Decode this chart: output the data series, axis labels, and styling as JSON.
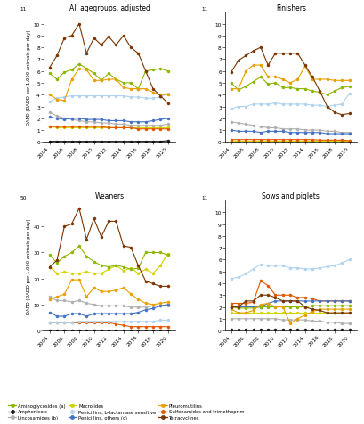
{
  "years": [
    2004,
    2005,
    2006,
    2007,
    2008,
    2009,
    2010,
    2011,
    2012,
    2013,
    2014,
    2015,
    2016,
    2017,
    2018,
    2019,
    2020
  ],
  "subplots": {
    "All agegroups, adjusted": {
      "ylim": [
        0,
        11
      ],
      "yticks": [
        0,
        1,
        2,
        3,
        4,
        5,
        6,
        7,
        8,
        9,
        10,
        11
      ],
      "series": {
        "Aminoglycosides (a)": [
          5.8,
          5.3,
          5.9,
          6.1,
          6.6,
          6.2,
          5.8,
          5.2,
          5.8,
          5.3,
          5.0,
          5.0,
          4.5,
          6.0,
          6.1,
          6.2,
          6.0
        ],
        "Amphenicols": [
          0.05,
          0.05,
          0.05,
          0.05,
          0.05,
          0.05,
          0.05,
          0.05,
          0.05,
          0.05,
          0.05,
          0.05,
          0.05,
          0.05,
          0.05,
          0.05,
          0.1
        ],
        "Lincosamides (b)": [
          2.5,
          2.2,
          2.0,
          1.9,
          1.8,
          1.7,
          1.7,
          1.6,
          1.6,
          1.5,
          1.5,
          1.4,
          1.4,
          1.4,
          1.4,
          1.4,
          1.5
        ],
        "Macrolides": [
          1.3,
          1.2,
          1.2,
          1.2,
          1.2,
          1.2,
          1.2,
          1.2,
          1.2,
          1.2,
          1.2,
          1.2,
          1.2,
          1.2,
          1.2,
          1.2,
          1.2
        ],
        "Penicillins, b-lactamase sensitive": [
          3.4,
          3.7,
          3.8,
          3.9,
          3.9,
          3.9,
          3.9,
          3.9,
          3.9,
          3.9,
          3.9,
          3.8,
          3.8,
          3.7,
          3.7,
          3.8,
          4.1
        ],
        "Penicillins, others (c)": [
          2.1,
          2.0,
          1.9,
          2.0,
          2.0,
          1.9,
          1.9,
          1.9,
          1.8,
          1.8,
          1.8,
          1.7,
          1.7,
          1.7,
          1.8,
          1.9,
          2.0
        ],
        "Pleuromutilins": [
          4.0,
          3.6,
          3.5,
          5.3,
          6.2,
          6.1,
          5.2,
          5.2,
          5.3,
          5.3,
          4.6,
          4.5,
          4.5,
          4.5,
          4.2,
          4.0,
          4.0
        ],
        "Sulfonamides and trimethoprim": [
          1.3,
          1.3,
          1.3,
          1.3,
          1.3,
          1.3,
          1.3,
          1.3,
          1.2,
          1.2,
          1.2,
          1.2,
          1.1,
          1.1,
          1.1,
          1.1,
          1.1
        ],
        "Tetracyclines": [
          6.3,
          7.3,
          8.8,
          9.0,
          10.0,
          7.5,
          8.8,
          8.2,
          8.9,
          8.2,
          9.0,
          8.0,
          7.5,
          6.0,
          4.5,
          3.9,
          3.3
        ]
      }
    },
    "Finishers": {
      "ylim": [
        0,
        11
      ],
      "yticks": [
        0,
        1,
        2,
        3,
        4,
        5,
        6,
        7,
        8,
        9,
        10,
        11
      ],
      "series": {
        "Aminoglycosides (a)": [
          5.0,
          4.4,
          4.7,
          5.1,
          5.5,
          4.9,
          5.0,
          4.6,
          4.6,
          4.5,
          4.5,
          4.3,
          4.2,
          4.0,
          4.3,
          4.6,
          4.7
        ],
        "Amphenicols": [
          0.05,
          0.05,
          0.05,
          0.05,
          0.05,
          0.05,
          0.05,
          0.05,
          0.05,
          0.05,
          0.05,
          0.05,
          0.05,
          0.05,
          0.05,
          0.05,
          0.05
        ],
        "Lincosamides (b)": [
          1.7,
          1.6,
          1.5,
          1.4,
          1.3,
          1.2,
          1.2,
          1.1,
          1.1,
          1.1,
          1.0,
          1.0,
          1.0,
          0.9,
          0.9,
          0.8,
          0.8
        ],
        "Macrolides": [
          0.1,
          0.1,
          0.1,
          0.1,
          0.1,
          0.1,
          0.1,
          0.1,
          0.1,
          0.1,
          0.1,
          0.1,
          0.1,
          0.1,
          0.1,
          0.1,
          0.1
        ],
        "Penicillins, b-lactamase sensitive": [
          2.8,
          3.0,
          3.0,
          3.2,
          3.2,
          3.2,
          3.3,
          3.2,
          3.2,
          3.2,
          3.2,
          3.1,
          3.1,
          3.0,
          3.1,
          3.2,
          4.1
        ],
        "Penicillins, others (c)": [
          1.0,
          0.9,
          0.9,
          0.9,
          0.8,
          0.9,
          0.9,
          0.9,
          0.8,
          0.8,
          0.8,
          0.8,
          0.8,
          0.7,
          0.7,
          0.7,
          0.7
        ],
        "Pleuromutilins": [
          4.5,
          4.5,
          6.0,
          6.5,
          6.5,
          5.5,
          5.5,
          5.3,
          5.0,
          5.3,
          6.4,
          5.3,
          5.3,
          5.3,
          5.2,
          5.2,
          5.2
        ],
        "Sulfonamides and trimethoprim": [
          0.2,
          0.2,
          0.2,
          0.2,
          0.2,
          0.2,
          0.2,
          0.2,
          0.2,
          0.2,
          0.2,
          0.2,
          0.15,
          0.15,
          0.15,
          0.15,
          0.1
        ],
        "Tetracyclines": [
          5.9,
          6.9,
          7.3,
          7.7,
          8.0,
          6.5,
          7.5,
          7.5,
          7.5,
          7.5,
          6.5,
          5.5,
          4.3,
          3.0,
          2.5,
          2.3,
          2.4
        ]
      }
    },
    "Weaners": {
      "ylim": [
        0,
        50
      ],
      "yticks": [
        0,
        10,
        20,
        30,
        40,
        50
      ],
      "series": {
        "Aminoglycosides (a)": [
          29.0,
          26.0,
          28.5,
          30.0,
          32.5,
          28.5,
          26.5,
          25.0,
          24.5,
          25.0,
          24.5,
          23.5,
          24.0,
          30.0,
          30.0,
          30.0,
          29.0
        ],
        "Amphenicols": [
          0.1,
          0.1,
          0.1,
          0.1,
          0.1,
          0.1,
          0.1,
          0.1,
          0.1,
          0.1,
          0.1,
          0.1,
          0.1,
          0.1,
          0.1,
          0.1,
          0.1
        ],
        "Lincosamides (b)": [
          13.0,
          11.5,
          11.5,
          11.0,
          11.5,
          10.5,
          10.0,
          9.5,
          9.5,
          9.5,
          9.5,
          9.0,
          9.0,
          9.0,
          9.5,
          9.5,
          9.5
        ],
        "Macrolides": [
          24.5,
          22.0,
          22.5,
          22.0,
          22.0,
          22.5,
          22.0,
          22.0,
          23.5,
          25.0,
          23.0,
          24.0,
          22.0,
          23.5,
          22.0,
          25.0,
          29.5
        ],
        "Penicillins, b-lactamase sensitive": [
          3.0,
          3.0,
          3.0,
          3.0,
          3.5,
          3.5,
          3.5,
          3.5,
          3.5,
          3.5,
          3.5,
          3.5,
          3.5,
          3.5,
          3.5,
          4.0,
          4.0
        ],
        "Penicillins, others (c)": [
          7.0,
          5.5,
          5.5,
          6.5,
          6.5,
          5.5,
          6.5,
          6.5,
          6.5,
          6.5,
          6.5,
          6.5,
          7.0,
          8.0,
          8.5,
          9.5,
          10.0
        ],
        "Pleuromutilins": [
          12.0,
          13.0,
          14.0,
          19.5,
          19.5,
          13.0,
          16.5,
          15.0,
          15.0,
          15.5,
          16.5,
          14.0,
          12.0,
          10.5,
          10.0,
          10.5,
          11.0
        ],
        "Sulfonamides and trimethoprim": [
          3.0,
          3.0,
          3.0,
          3.0,
          3.0,
          3.0,
          3.0,
          3.0,
          3.0,
          2.5,
          2.0,
          1.5,
          1.5,
          1.5,
          1.5,
          1.5,
          1.5
        ],
        "Tetracyclines": [
          24.5,
          27.0,
          40.0,
          41.0,
          47.0,
          35.0,
          43.0,
          36.0,
          42.0,
          42.0,
          32.5,
          32.0,
          25.0,
          19.0,
          18.0,
          17.0,
          17.0
        ]
      }
    },
    "Sows and piglets": {
      "ylim": [
        0,
        11
      ],
      "yticks": [
        0,
        1,
        2,
        3,
        4,
        5,
        6,
        7,
        8,
        9,
        10,
        11
      ],
      "series": {
        "Aminoglycosides (a)": [
          2.0,
          1.9,
          1.9,
          1.9,
          2.0,
          2.0,
          2.0,
          2.0,
          2.0,
          2.0,
          2.0,
          2.1,
          2.1,
          2.1,
          2.1,
          2.1,
          2.1
        ],
        "Amphenicols": [
          0.05,
          0.05,
          0.05,
          0.05,
          0.05,
          0.05,
          0.05,
          0.05,
          0.05,
          0.05,
          0.05,
          0.05,
          0.05,
          0.05,
          0.05,
          0.05,
          0.05
        ],
        "Lincosamides (b)": [
          1.0,
          1.0,
          1.0,
          1.0,
          1.0,
          1.0,
          1.0,
          0.9,
          0.9,
          0.9,
          0.9,
          0.8,
          0.8,
          0.7,
          0.7,
          0.6,
          0.6
        ],
        "Macrolides": [
          1.5,
          1.5,
          1.5,
          1.5,
          1.5,
          1.5,
          1.5,
          1.5,
          1.5,
          1.5,
          1.5,
          1.5,
          1.5,
          1.5,
          1.5,
          1.5,
          1.5
        ],
        "Penicillins, b-lactamase sensitive": [
          4.4,
          4.5,
          4.8,
          5.2,
          5.6,
          5.5,
          5.5,
          5.5,
          5.3,
          5.3,
          5.2,
          5.2,
          5.3,
          5.4,
          5.5,
          5.7,
          6.0
        ],
        "Penicillins, others (c)": [
          2.0,
          2.0,
          2.0,
          2.0,
          2.0,
          2.3,
          2.5,
          2.5,
          2.5,
          2.5,
          2.5,
          2.5,
          2.5,
          2.5,
          2.5,
          2.5,
          2.5
        ],
        "Pleuromutilins": [
          1.8,
          1.5,
          1.5,
          1.7,
          2.2,
          2.3,
          2.0,
          2.0,
          0.6,
          1.0,
          1.3,
          1.6,
          1.8,
          1.8,
          1.8,
          1.8,
          1.8
        ],
        "Sulfonamides and trimethoprim": [
          2.3,
          2.3,
          2.3,
          2.4,
          4.2,
          3.8,
          3.0,
          3.0,
          3.0,
          2.8,
          2.8,
          2.7,
          2.5,
          2.5,
          2.5,
          2.5,
          2.5
        ],
        "Tetracyclines": [
          2.0,
          2.0,
          2.5,
          2.5,
          3.0,
          3.0,
          2.8,
          2.5,
          2.5,
          2.5,
          2.0,
          1.8,
          1.7,
          1.5,
          1.5,
          1.5,
          1.5
        ]
      }
    }
  },
  "colors": {
    "Aminoglycosides (a)": "#8db600",
    "Amphenicols": "#1a1a1a",
    "Lincosamides (b)": "#b0b0b0",
    "Macrolides": "#d4d400",
    "Penicillins, b-lactamase sensitive": "#b0d4f0",
    "Penicillins, others (c)": "#4472c4",
    "Pleuromutilins": "#e8a000",
    "Sulfonamides and trimethoprim": "#e05800",
    "Tetracyclines": "#7b3500"
  },
  "ylabel": "DAPD (DADD per 1,000 animals per day)",
  "xtick_years": [
    2004,
    2006,
    2008,
    2010,
    2012,
    2014,
    2016,
    2018,
    2020
  ],
  "legend_cols_order": [
    [
      "Aminoglycosides (a)",
      "Amphenicols",
      "Lincosamides (b)"
    ],
    [
      "Macrolides",
      "Penicillins, b-lactamase sensitive",
      "Penicillins, others (c)"
    ],
    [
      "Pleuromutilins",
      "Sulfonamides and trimethoprim",
      "Tetracyclines"
    ]
  ]
}
